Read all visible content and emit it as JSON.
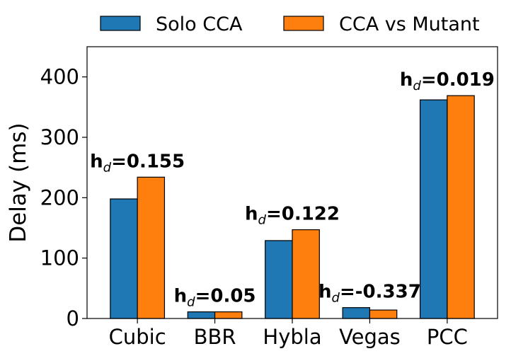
{
  "chart_data": {
    "type": "bar",
    "categories": [
      "Cubic",
      "BBR",
      "Hybla",
      "Vegas",
      "PCC"
    ],
    "series": [
      {
        "name": "Solo CCA",
        "values": [
          198,
          11,
          129,
          18,
          362
        ],
        "color": "#1f77b4"
      },
      {
        "name": "CCA vs Mutant",
        "values": [
          234,
          11,
          147,
          14,
          369
        ],
        "color": "#ff7f0e"
      }
    ],
    "annotations": [
      {
        "category": "Cubic",
        "prefix": "h",
        "subscript": "d",
        "text": "=0.155"
      },
      {
        "category": "BBR",
        "prefix": "h",
        "subscript": "d",
        "text": "=0.05"
      },
      {
        "category": "Hybla",
        "prefix": "h",
        "subscript": "d",
        "text": "=0.122"
      },
      {
        "category": "Vegas",
        "prefix": "h",
        "subscript": "d",
        "text": "=-0.337"
      },
      {
        "category": "PCC",
        "prefix": "h",
        "subscript": "d",
        "text": "=0.019"
      }
    ],
    "xlabel": "",
    "ylabel": "Delay (ms)",
    "ylim": [
      0,
      450
    ],
    "yticks": [
      0,
      100,
      200,
      300,
      400
    ],
    "grid": false,
    "legend_placement": "top, outside plot"
  }
}
